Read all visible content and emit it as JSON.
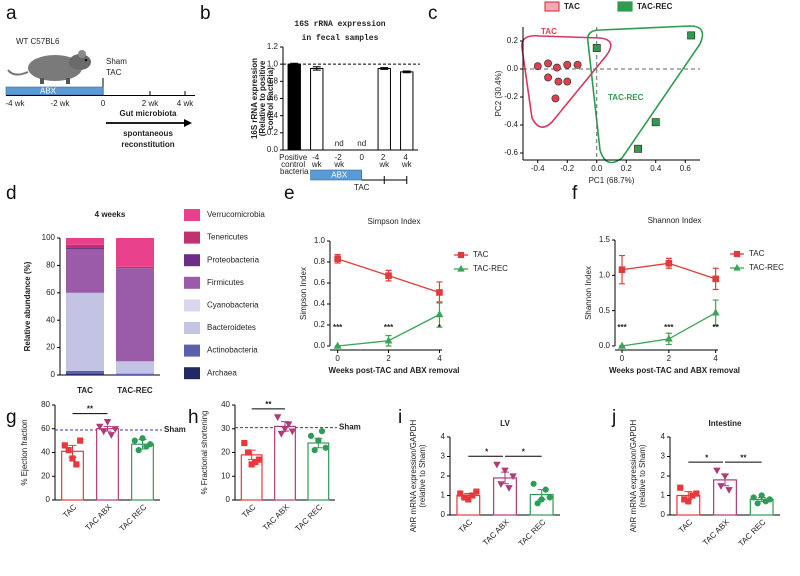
{
  "diagram_a": {
    "panel_label": "a",
    "strain": "WT C57BL6",
    "groups": [
      "Sham",
      "TAC"
    ],
    "treatment": "ABX",
    "timeline": [
      "-4 wk",
      "-2 wk",
      "0",
      "2 wk",
      "4 wk"
    ],
    "phase": [
      "Gut microbiota",
      "spontaneous",
      "reconstitution"
    ]
  },
  "chart_data": [
    {
      "type": "bar",
      "panel_label": "b",
      "title": [
        "16S rRNA expression",
        "in fecal samples"
      ],
      "ylabel": [
        "16S rRNA expression",
        "(Relative to positive",
        "control bacteria)"
      ],
      "categories": [
        "Positive control bacteria",
        "-4 wk",
        "-2 wk",
        "0",
        "2 wk",
        "4 wk"
      ],
      "values": [
        1.0,
        0.95,
        null,
        null,
        0.95,
        0.91
      ],
      "errors": [
        0.01,
        0.02,
        null,
        null,
        0.01,
        0.01
      ],
      "value_labels": [
        null,
        null,
        "nd",
        "nd",
        null,
        null
      ],
      "colors": [
        "#000000",
        "#ffffff",
        "#ffffff",
        "#ffffff",
        "#ffffff",
        "#ffffff"
      ],
      "edge_color": "#000000",
      "reference": 1.0,
      "ylim": [
        0,
        1.2
      ],
      "yticks": [
        {
          "value": 0,
          "label": "0.0"
        },
        0.2,
        0.4,
        0.6,
        0.8,
        {
          "value": 1,
          "label": "1.0"
        },
        1.2
      ],
      "treatment": "ABX",
      "timepoint": "TAC"
    },
    {
      "type": "scatter",
      "panel_label": "c",
      "xlabel": "PC1 (68.7%)",
      "ylabel": "PC2 (30.4%)",
      "legend": "top",
      "zero_lines": true,
      "xlim": [
        -0.5,
        0.7
      ],
      "ylim": [
        -0.65,
        0.3
      ],
      "xticks": [
        -0.4,
        -0.2,
        {
          "value": 0,
          "label": "0.0"
        },
        0.2,
        0.4,
        0.6
      ],
      "yticks": [
        0.2,
        {
          "value": 0,
          "label": "0.0"
        },
        -0.2,
        -0.4,
        -0.6
      ],
      "series": [
        {
          "name": "TAC",
          "color": "#e0404e",
          "swatch": "#f6a9b4",
          "marker": "circle",
          "x": [
            -0.4,
            -0.33,
            -0.27,
            -0.2,
            -0.13,
            -0.33,
            -0.26,
            -0.2,
            -0.28
          ],
          "y": [
            0.02,
            0.04,
            0.01,
            0.03,
            0.03,
            -0.06,
            -0.09,
            -0.09,
            -0.21
          ]
        },
        {
          "name": "TAC-REC",
          "color": "#2e9b4f",
          "swatch": "#2e9b4f",
          "marker": "square",
          "x": [
            0.0,
            0.64,
            0.4,
            0.28
          ],
          "y": [
            0.15,
            0.24,
            -0.38,
            -0.57
          ]
        }
      ]
    },
    {
      "type": "stacked_bar",
      "panel_label": "d",
      "title": "4 weeks",
      "ylabel": "Relative abundance (%)",
      "categories": [
        "TAC",
        "TAC-REC"
      ],
      "legend": "right",
      "ylim": [
        0,
        100
      ],
      "yticks": [
        0,
        20,
        40,
        60,
        80,
        100
      ],
      "series": [
        {
          "name": "Archaea",
          "color": "#232a63",
          "values": [
            1,
            0
          ]
        },
        {
          "name": "Actinobacteria",
          "color": "#5b60ab",
          "values": [
            2,
            1
          ]
        },
        {
          "name": "Bacteroidetes",
          "color": "#c3c4e3",
          "values": [
            57,
            9
          ]
        },
        {
          "name": "Cyanobacteria",
          "color": "#ddd5ec",
          "values": [
            0,
            0
          ]
        },
        {
          "name": "Firmicutes",
          "color": "#9a5ba8",
          "values": [
            32,
            68
          ]
        },
        {
          "name": "Proteobacteria",
          "color": "#6a2e86",
          "values": [
            1,
            0
          ]
        },
        {
          "name": "Tenericutes",
          "color": "#c2306f",
          "values": [
            2,
            1
          ]
        },
        {
          "name": "Verrucomicrobia",
          "color": "#e8408b",
          "values": [
            5,
            21
          ]
        }
      ]
    },
    {
      "type": "line",
      "panel_label": "e",
      "title": "Simpson Index",
      "ylabel": "Simpson Index",
      "xlabel": "Weeks post-TAC and ABX removal",
      "legend": "right",
      "x": [
        0,
        2,
        4
      ],
      "xlim": [
        -0.3,
        4.1
      ],
      "xticks": [
        0,
        2,
        4
      ],
      "ylim": [
        0,
        1
      ],
      "yticks": [
        {
          "value": 0,
          "label": "0.0"
        },
        0.2,
        0.4,
        0.6,
        0.8,
        {
          "value": 1,
          "label": "1.0"
        }
      ],
      "series": [
        {
          "name": "TAC",
          "color": "#e23b3b",
          "marker": "square",
          "values": [
            0.83,
            0.67,
            0.51
          ],
          "errors": [
            0.04,
            0.05,
            0.1
          ]
        },
        {
          "name": "TAC-REC",
          "color": "#3aa457",
          "marker": "triangle",
          "values": [
            0.0,
            0.05,
            0.3
          ],
          "errors": [
            0.0,
            0.05,
            0.12
          ]
        }
      ],
      "significance": [
        "***",
        "***",
        "*"
      ]
    },
    {
      "type": "line",
      "panel_label": "f",
      "title": "Shannon Index",
      "ylabel": "Shannon Index",
      "xlabel": "Weeks post-TAC and ABX removal",
      "legend": "right",
      "x": [
        0,
        2,
        4
      ],
      "xlim": [
        -0.3,
        4.1
      ],
      "xticks": [
        0,
        2,
        4
      ],
      "ylim": [
        0,
        1.5
      ],
      "yticks": [
        {
          "value": 0,
          "label": "0.0"
        },
        0.5,
        {
          "value": 1,
          "label": "1.0"
        },
        1.5
      ],
      "series": [
        {
          "name": "TAC",
          "color": "#e23b3b",
          "marker": "square",
          "values": [
            1.08,
            1.17,
            0.95
          ],
          "errors": [
            0.2,
            0.07,
            0.15
          ]
        },
        {
          "name": "TAC-REC",
          "color": "#3aa457",
          "marker": "triangle",
          "values": [
            0.0,
            0.1,
            0.47
          ],
          "errors": [
            0.0,
            0.08,
            0.18
          ]
        }
      ],
      "significance": [
        "***",
        "***",
        "**"
      ]
    },
    {
      "type": "bar",
      "panel_label": "g",
      "ylabel": "% Ejection fraction",
      "bar_style": "outline",
      "rotate_labels": true,
      "categories": [
        "TAC",
        "TAC ABX",
        "TAC REC"
      ],
      "values": [
        41,
        60,
        47
      ],
      "errors": [
        5,
        2,
        4
      ],
      "colors": [
        "#e8383d",
        "#b03a78",
        "#2e9b57"
      ],
      "markers": [
        "square",
        "triangle-down",
        "circle"
      ],
      "points": [
        [
          46,
          42,
          35,
          30,
          50
        ],
        [
          62,
          58,
          66,
          55,
          60
        ],
        [
          50,
          42,
          52,
          45,
          47
        ]
      ],
      "reference": 59,
      "reference_label": "Sham",
      "ylim": [
        0,
        80
      ],
      "yticks": [
        0,
        20,
        40,
        60,
        80
      ],
      "significance": [
        {
          "between": [
            "TAC",
            "TAC ABX"
          ],
          "label": "**"
        }
      ]
    },
    {
      "type": "bar",
      "panel_label": "h",
      "ylabel": "% Fractional shortening",
      "bar_style": "outline",
      "rotate_labels": true,
      "categories": [
        "TAC",
        "TAC ABX",
        "TAC REC"
      ],
      "values": [
        19,
        31,
        24
      ],
      "errors": [
        2,
        2,
        2
      ],
      "colors": [
        "#e8383d",
        "#b03a78",
        "#2e9b57"
      ],
      "markers": [
        "square",
        "triangle-down",
        "circle"
      ],
      "points": [
        [
          24,
          20,
          15,
          16,
          17
        ],
        [
          35,
          28,
          30,
          32,
          29
        ],
        [
          27,
          21,
          25,
          29,
          22
        ]
      ],
      "reference": 30.5,
      "reference_label": "Sham",
      "ylim": [
        0,
        40
      ],
      "yticks": [
        0,
        10,
        20,
        30,
        40
      ],
      "significance": [
        {
          "between": [
            "TAC",
            "TAC ABX"
          ],
          "label": "**"
        }
      ]
    },
    {
      "type": "bar",
      "panel_label": "i",
      "title": "LV",
      "ylabel": [
        "AhR mRNA expression/GAPDH",
        "(relative to Sham)"
      ],
      "bar_style": "outline",
      "rotate_labels": true,
      "categories": [
        "TAC",
        "TAC ABX",
        "TAC REC"
      ],
      "values": [
        1.0,
        1.9,
        1.05
      ],
      "errors": [
        0.1,
        0.3,
        0.25
      ],
      "colors": [
        "#e8383d",
        "#b03a78",
        "#2e9b57"
      ],
      "markers": [
        "square",
        "triangle-down",
        "circle"
      ],
      "points": [
        [
          1.1,
          0.9,
          0.8,
          1.0,
          1.2
        ],
        [
          2.6,
          1.6,
          2.3,
          1.4,
          2.0
        ],
        [
          1.6,
          0.6,
          0.8,
          1.3,
          0.9
        ]
      ],
      "ylim": [
        0,
        4
      ],
      "yticks": [
        0,
        1,
        2,
        3,
        4
      ],
      "significance": [
        {
          "between": [
            "TAC",
            "TAC ABX"
          ],
          "label": "*"
        },
        {
          "between": [
            "TAC ABX",
            "TAC REC"
          ],
          "label": "*"
        }
      ]
    },
    {
      "type": "bar",
      "panel_label": "j",
      "title": "Intestine",
      "ylabel": [
        "AhR mRNA expression/GAPDH",
        "(relative to Sham)"
      ],
      "bar_style": "outline",
      "rotate_labels": true,
      "categories": [
        "TAC",
        "TAC ABX",
        "TAC REC"
      ],
      "values": [
        1.0,
        1.8,
        0.8
      ],
      "errors": [
        0.2,
        0.3,
        0.1
      ],
      "colors": [
        "#e8383d",
        "#b03a78",
        "#2e9b57"
      ],
      "markers": [
        "square",
        "triangle-down",
        "circle"
      ],
      "points": [
        [
          1.4,
          0.8,
          0.7,
          1.0,
          1.1
        ],
        [
          2.3,
          1.5,
          2.0,
          1.3
        ],
        [
          0.9,
          0.6,
          1.0,
          0.7,
          0.8
        ]
      ],
      "ylim": [
        0,
        4
      ],
      "yticks": [
        0,
        1,
        2,
        3,
        4
      ],
      "significance": [
        {
          "between": [
            "TAC",
            "TAC ABX"
          ],
          "label": "*"
        },
        {
          "between": [
            "TAC ABX",
            "TAC REC"
          ],
          "label": "**"
        }
      ]
    }
  ]
}
